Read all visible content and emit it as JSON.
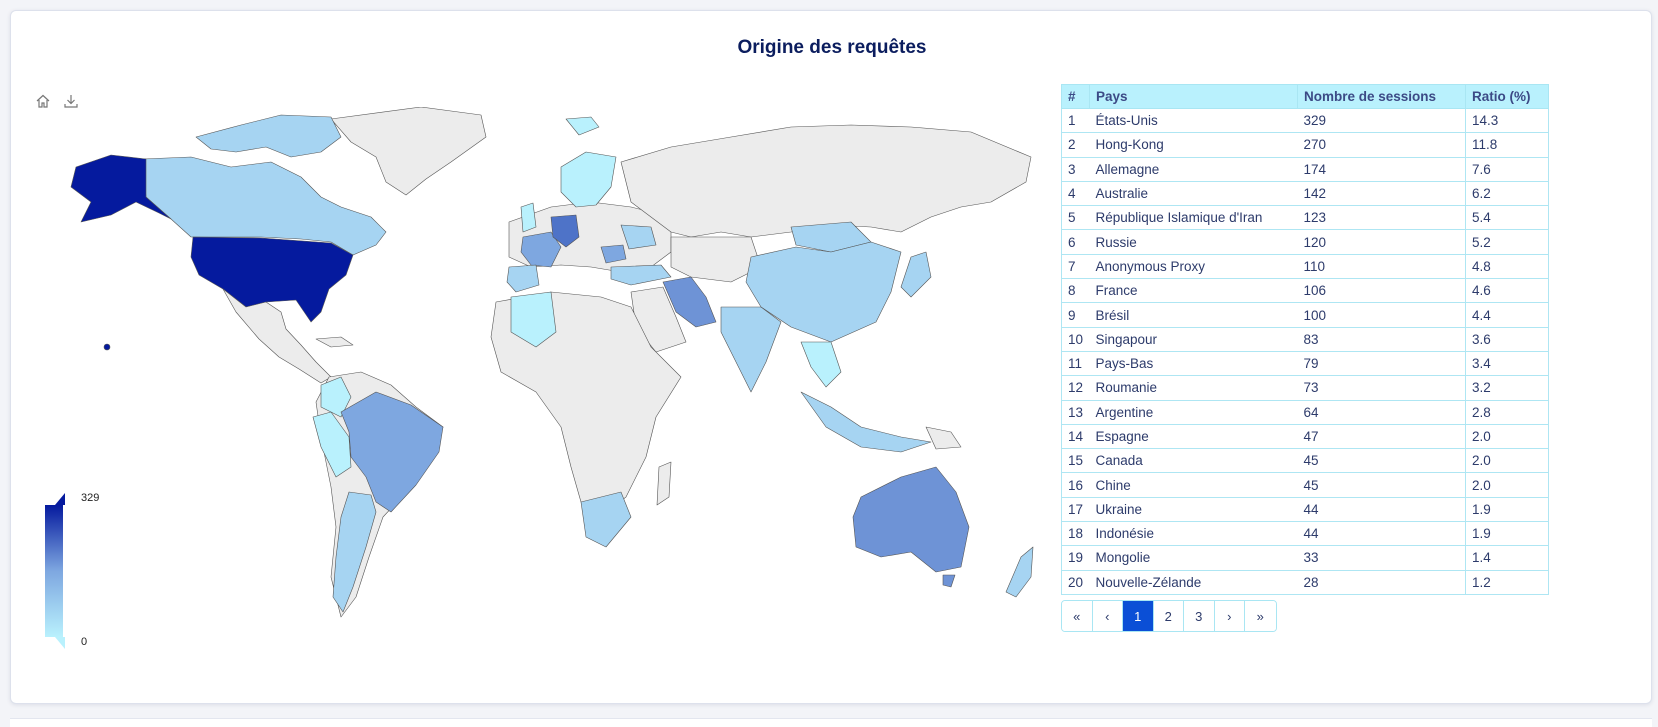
{
  "title": "Origine des requêtes",
  "colors": {
    "scale_max": "#051a9e",
    "scale_mid": "#7ea7e0",
    "scale_min": "#b9f1fd",
    "no_data": "#ececec",
    "header_bg": "#b9f1fd",
    "accent": "#0b4fd6"
  },
  "toolbar": {
    "home_icon": "home-icon",
    "download_icon": "download-icon"
  },
  "legend": {
    "max": "329",
    "min": "0"
  },
  "table": {
    "headers": [
      "#",
      "Pays",
      "Nombre de sessions",
      "Ratio (%)"
    ],
    "rows": [
      {
        "rank": "1",
        "country": "États-Unis",
        "sessions": "329",
        "ratio": "14.3"
      },
      {
        "rank": "2",
        "country": "Hong-Kong",
        "sessions": "270",
        "ratio": "11.8"
      },
      {
        "rank": "3",
        "country": "Allemagne",
        "sessions": "174",
        "ratio": "7.6"
      },
      {
        "rank": "4",
        "country": "Australie",
        "sessions": "142",
        "ratio": "6.2"
      },
      {
        "rank": "5",
        "country": "République Islamique d'Iran",
        "sessions": "123",
        "ratio": "5.4"
      },
      {
        "rank": "6",
        "country": "Russie",
        "sessions": "120",
        "ratio": "5.2"
      },
      {
        "rank": "7",
        "country": "Anonymous Proxy",
        "sessions": "110",
        "ratio": "4.8"
      },
      {
        "rank": "8",
        "country": "France",
        "sessions": "106",
        "ratio": "4.6"
      },
      {
        "rank": "9",
        "country": "Brésil",
        "sessions": "100",
        "ratio": "4.4"
      },
      {
        "rank": "10",
        "country": "Singapour",
        "sessions": "83",
        "ratio": "3.6"
      },
      {
        "rank": "11",
        "country": "Pays-Bas",
        "sessions": "79",
        "ratio": "3.4"
      },
      {
        "rank": "12",
        "country": "Roumanie",
        "sessions": "73",
        "ratio": "3.2"
      },
      {
        "rank": "13",
        "country": "Argentine",
        "sessions": "64",
        "ratio": "2.8"
      },
      {
        "rank": "14",
        "country": "Espagne",
        "sessions": "47",
        "ratio": "2.0"
      },
      {
        "rank": "15",
        "country": "Canada",
        "sessions": "45",
        "ratio": "2.0"
      },
      {
        "rank": "16",
        "country": "Chine",
        "sessions": "45",
        "ratio": "2.0"
      },
      {
        "rank": "17",
        "country": "Ukraine",
        "sessions": "44",
        "ratio": "1.9"
      },
      {
        "rank": "18",
        "country": "Indonésie",
        "sessions": "44",
        "ratio": "1.9"
      },
      {
        "rank": "19",
        "country": "Mongolie",
        "sessions": "33",
        "ratio": "1.4"
      },
      {
        "rank": "20",
        "country": "Nouvelle-Zélande",
        "sessions": "28",
        "ratio": "1.2"
      }
    ]
  },
  "pagination": {
    "first": "«",
    "prev": "‹",
    "pages": [
      "1",
      "2",
      "3"
    ],
    "current": "1",
    "next": "›",
    "last": "»"
  }
}
